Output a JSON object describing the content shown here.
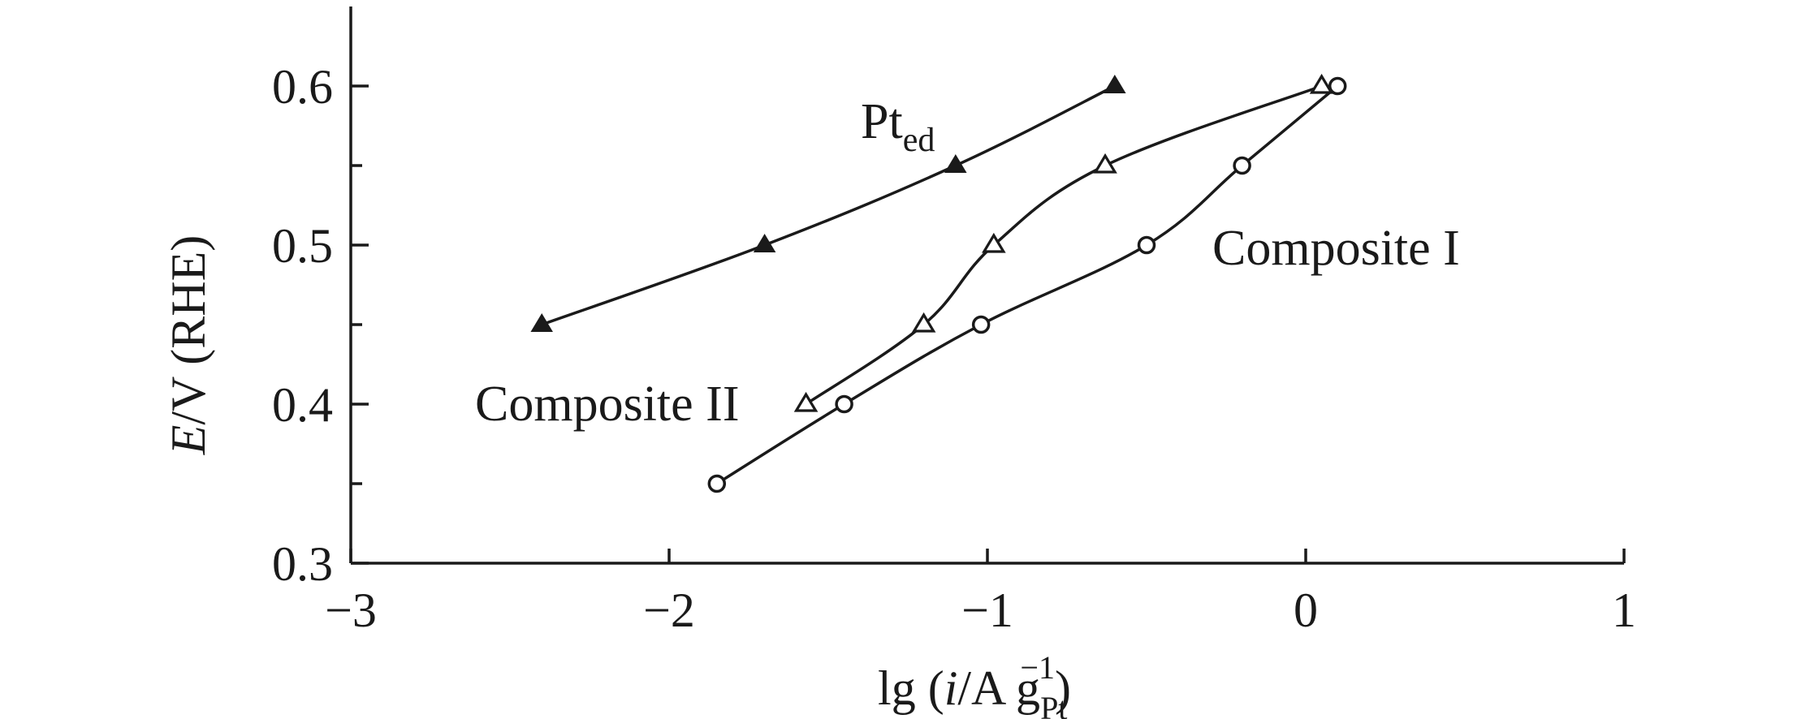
{
  "chart_data": {
    "type": "line",
    "title": "",
    "xlabel": {
      "prefix": "lg (",
      "var": "i",
      "mid": "/A g",
      "sub": "Pt",
      "sup": "−1",
      "suffix": ")"
    },
    "ylabel": {
      "var": "E",
      "rest": "/V (RHE)"
    },
    "xlim": [
      -3,
      1
    ],
    "ylim": [
      0.3,
      0.65
    ],
    "x_ticks": [
      -3,
      -2,
      -1,
      0,
      1
    ],
    "x_tick_labels": [
      "−3",
      "−2",
      "−1",
      "0",
      "1"
    ],
    "y_ticks": [
      0.3,
      0.4,
      0.5,
      0.6
    ],
    "y_tick_labels": [
      "0.3",
      "0.4",
      "0.5",
      "0.6"
    ],
    "y_minor_ticks": [
      0.35,
      0.45,
      0.55
    ],
    "grid": false,
    "series": [
      {
        "label_main": "Pt",
        "label_sub": "ed",
        "marker": "filled-triangle",
        "x": [
          -2.4,
          -1.7,
          -1.1,
          -0.6
        ],
        "y": [
          0.45,
          0.5,
          0.55,
          0.6
        ]
      },
      {
        "label_main": "Composite II",
        "label_sub": "",
        "marker": "open-triangle",
        "x": [
          -1.57,
          -1.2,
          -0.98,
          -0.63,
          0.05
        ],
        "y": [
          0.4,
          0.45,
          0.5,
          0.55,
          0.6
        ]
      },
      {
        "label_main": "Composite I",
        "label_sub": "",
        "marker": "open-circle",
        "x": [
          -1.85,
          -1.45,
          -1.02,
          -0.5,
          -0.2,
          0.1
        ],
        "y": [
          0.35,
          0.4,
          0.45,
          0.5,
          0.55,
          0.6
        ]
      }
    ]
  }
}
